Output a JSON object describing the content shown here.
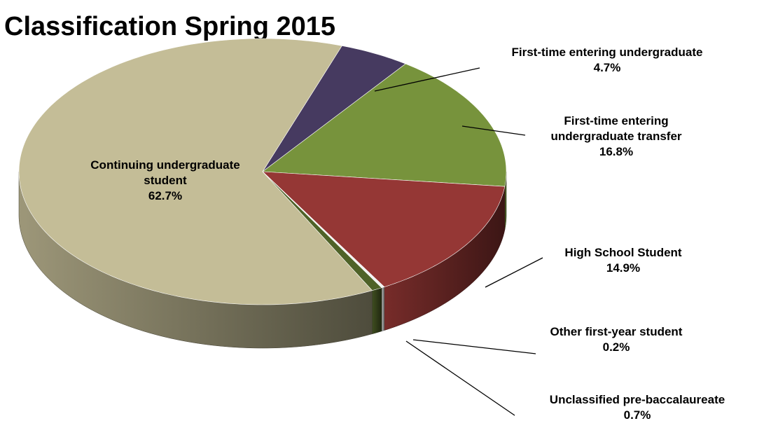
{
  "chart_data": {
    "type": "pie",
    "title": "Classification Spring 2015",
    "categories": [
      "First-time entering undergraduate",
      "First-time entering undergraduate transfer",
      "High School Student",
      "Other first-year student",
      "Unclassified pre-baccalaureate",
      "Continuing undergraduate student"
    ],
    "values": [
      4.7,
      16.8,
      14.9,
      0.2,
      0.7,
      62.7
    ],
    "value_labels": [
      "4.7%",
      "16.8%",
      "14.9%",
      "0.2%",
      "0.7%",
      "62.7%"
    ],
    "colors": [
      "#463a60",
      "#77933c",
      "#953735",
      "#f2f2f2",
      "#4f6228",
      "#c4bd97"
    ]
  }
}
